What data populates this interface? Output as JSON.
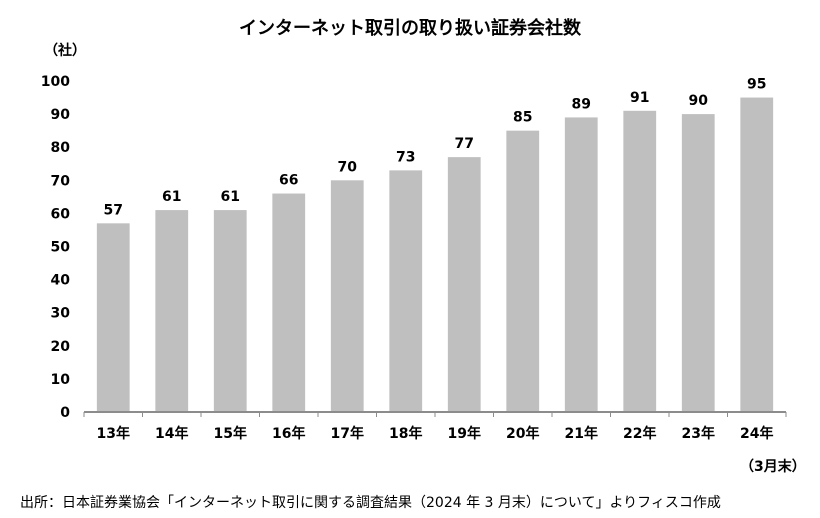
{
  "chart_data": {
    "type": "bar",
    "title": "インターネット取引の取り扱い証券会社数",
    "ylabel": "（社）",
    "xlabel": "",
    "x_note": "（3月末）",
    "categories": [
      "13年",
      "14年",
      "15年",
      "16年",
      "17年",
      "18年",
      "19年",
      "20年",
      "21年",
      "22年",
      "23年",
      "24年"
    ],
    "values": [
      57,
      61,
      61,
      66,
      70,
      73,
      77,
      85,
      89,
      91,
      90,
      95
    ],
    "ylim": [
      0,
      100
    ],
    "yticks": [
      0,
      10,
      20,
      30,
      40,
      50,
      60,
      70,
      80,
      90,
      100
    ],
    "grid": false,
    "legend": "none",
    "bar_color": "#bfbfbf",
    "axis_color": "#8c8c8c"
  },
  "source": "出所：日本証券業協会「インターネット取引に関する調査結果（2024 年 3 月末）について」よりフィスコ作成"
}
